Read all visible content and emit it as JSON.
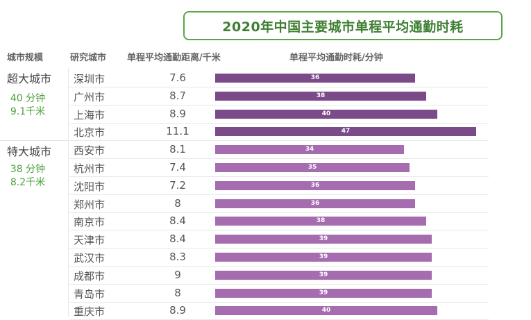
{
  "title": "2020年中国主要城市单程平均通勤时耗",
  "headers": {
    "tier": "城市规模",
    "city": "研究城市",
    "distance": "单程平均通勤距离/千米",
    "time": "单程平均通勤时耗/分钟"
  },
  "tiers": [
    {
      "name": "超大城市",
      "avg_time": "40 分钟",
      "avg_distance": "9.1千米"
    },
    {
      "name": "特大城市",
      "avg_time": "38 分钟",
      "avg_distance": "8.2千米"
    }
  ],
  "colors": {
    "super": "#7b4a88",
    "large": "#a56cb0",
    "title_border": "#5aa548",
    "stat_text": "#4aa03a"
  },
  "chart_data": {
    "type": "bar",
    "orientation": "horizontal",
    "title": "2020年中国主要城市单程平均通勤时耗",
    "xlabel": "单程平均通勤时耗/分钟",
    "categories": [
      "深圳市",
      "广州市",
      "上海市",
      "北京市",
      "西安市",
      "杭州市",
      "沈阳市",
      "郑州市",
      "南京市",
      "天津市",
      "武汉市",
      "成都市",
      "青岛市",
      "重庆市"
    ],
    "distance_labels": [
      "7.6",
      "8.7",
      "8.9",
      "11.1",
      "8.1",
      "7.4",
      "7.2",
      "8",
      "8.4",
      "8.4",
      "8.3",
      "9",
      "8",
      "8.9"
    ],
    "values": [
      36,
      38,
      40,
      47,
      34,
      35,
      36,
      36,
      38,
      39,
      39,
      39,
      39,
      40
    ],
    "groups": [
      "super",
      "super",
      "super",
      "super",
      "large",
      "large",
      "large",
      "large",
      "large",
      "large",
      "large",
      "large",
      "large",
      "large"
    ],
    "grid": false
  }
}
